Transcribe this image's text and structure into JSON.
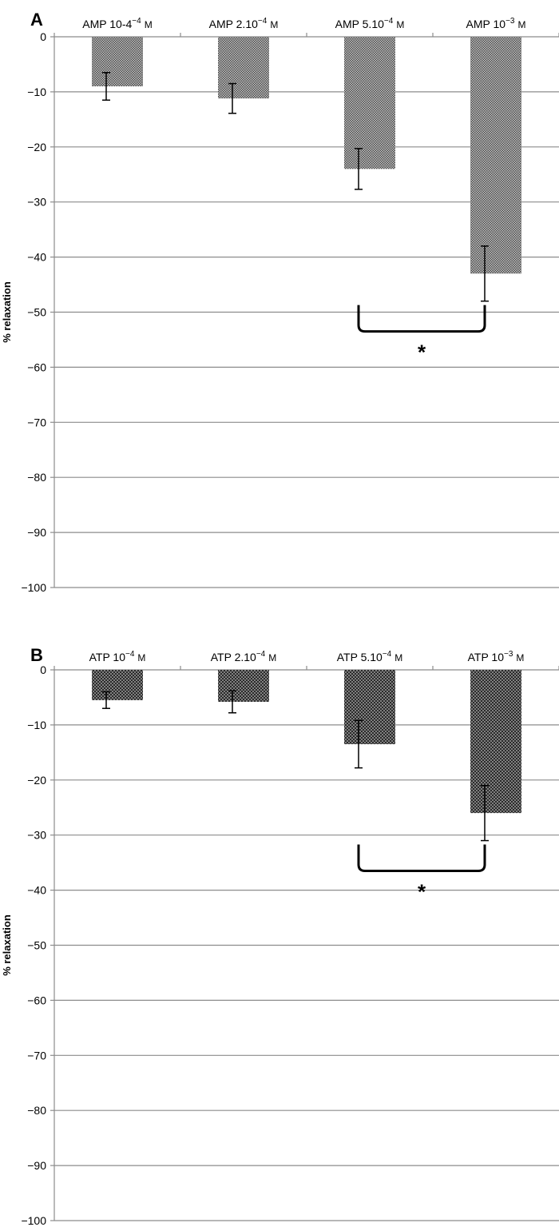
{
  "chart_data": [
    {
      "type": "bar",
      "panel": "A",
      "categories": [
        "AMP 10-4",
        "AMP 2.10",
        "AMP 5.10",
        "AMP 10"
      ],
      "category_sup": [
        "−4",
        "−4",
        "−4",
        "−3"
      ],
      "category_unit": "M",
      "values": [
        -9,
        -11.2,
        -24,
        -43
      ],
      "errors": [
        2.5,
        2.7,
        3.7,
        5
      ],
      "ylabel": "% relaxation",
      "ylim": [
        -100,
        0
      ],
      "yticks": [
        0,
        -10,
        -20,
        -30,
        -40,
        -50,
        -60,
        -70,
        -80,
        -90,
        -100
      ],
      "grid": true,
      "bar_pattern": "checker",
      "significance": {
        "from": 2,
        "to": 3,
        "label": "*",
        "level": -53.5
      }
    },
    {
      "type": "bar",
      "panel": "B",
      "categories": [
        "ATP 10",
        "ATP 2.10",
        "ATP 5.10",
        "ATP 10"
      ],
      "category_sup": [
        "−4",
        "−4",
        "−4",
        "−3"
      ],
      "category_unit": "M",
      "values": [
        -5.5,
        -5.8,
        -13.5,
        -26
      ],
      "errors": [
        1.5,
        2,
        4.3,
        5
      ],
      "ylabel": "% relaxation",
      "ylim": [
        -100,
        0
      ],
      "yticks": [
        0,
        -10,
        -20,
        -30,
        -40,
        -50,
        -60,
        -70,
        -80,
        -90,
        -100
      ],
      "grid": true,
      "bar_pattern": "dots",
      "significance": {
        "from": 2,
        "to": 3,
        "label": "*",
        "level": -36.5
      }
    }
  ]
}
